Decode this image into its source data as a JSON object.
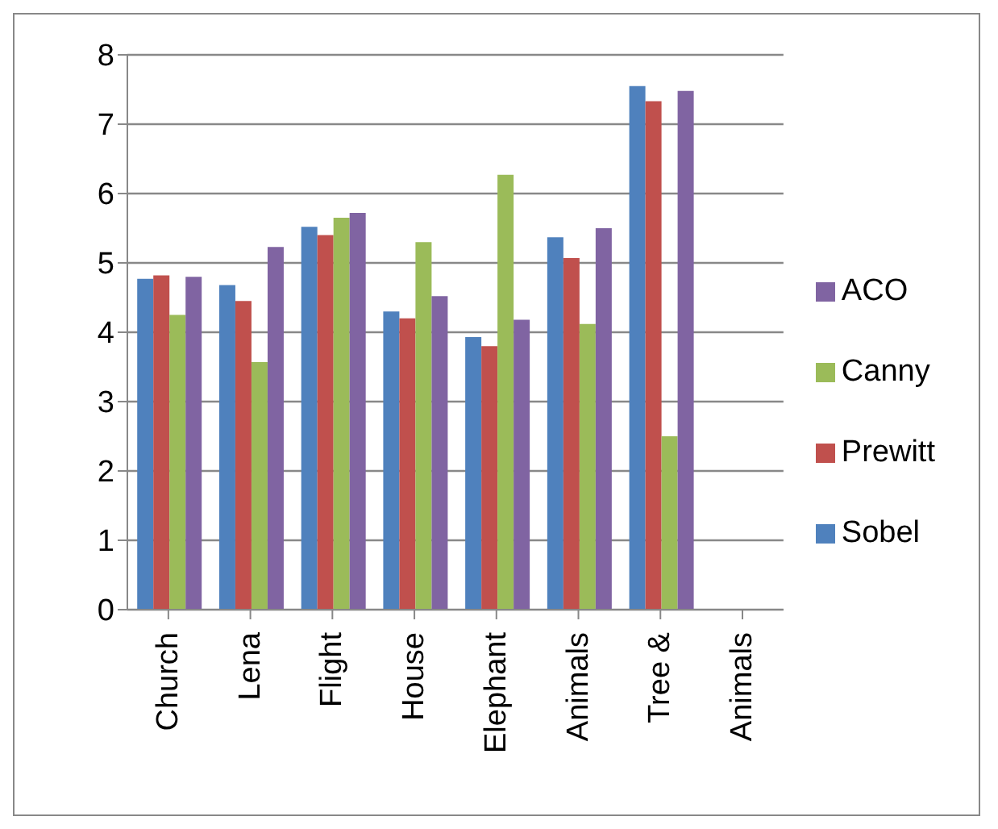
{
  "chart_data": {
    "type": "bar",
    "categories": [
      "Church",
      "Lena",
      "Flight",
      "House",
      "Elephant",
      "Animals",
      "Tree &",
      "Animals"
    ],
    "series": [
      {
        "name": "Sobel",
        "color": "#4f81bd",
        "values": [
          4.77,
          4.68,
          5.52,
          4.3,
          3.93,
          5.37,
          7.55,
          null
        ]
      },
      {
        "name": "Prewitt",
        "color": "#c0504d",
        "values": [
          4.82,
          4.45,
          5.4,
          4.2,
          3.8,
          5.07,
          7.33,
          null
        ]
      },
      {
        "name": "Canny",
        "color": "#9bbb59",
        "values": [
          4.25,
          3.57,
          5.65,
          5.3,
          6.27,
          4.12,
          2.5,
          null
        ]
      },
      {
        "name": "ACO",
        "color": "#8064a2",
        "values": [
          4.8,
          5.23,
          5.72,
          4.52,
          4.18,
          5.5,
          7.48,
          null
        ]
      }
    ],
    "ylim": [
      0,
      8
    ],
    "yticks": [
      0,
      1,
      2,
      3,
      4,
      5,
      6,
      7,
      8
    ],
    "grid": "y",
    "legend": "right"
  }
}
